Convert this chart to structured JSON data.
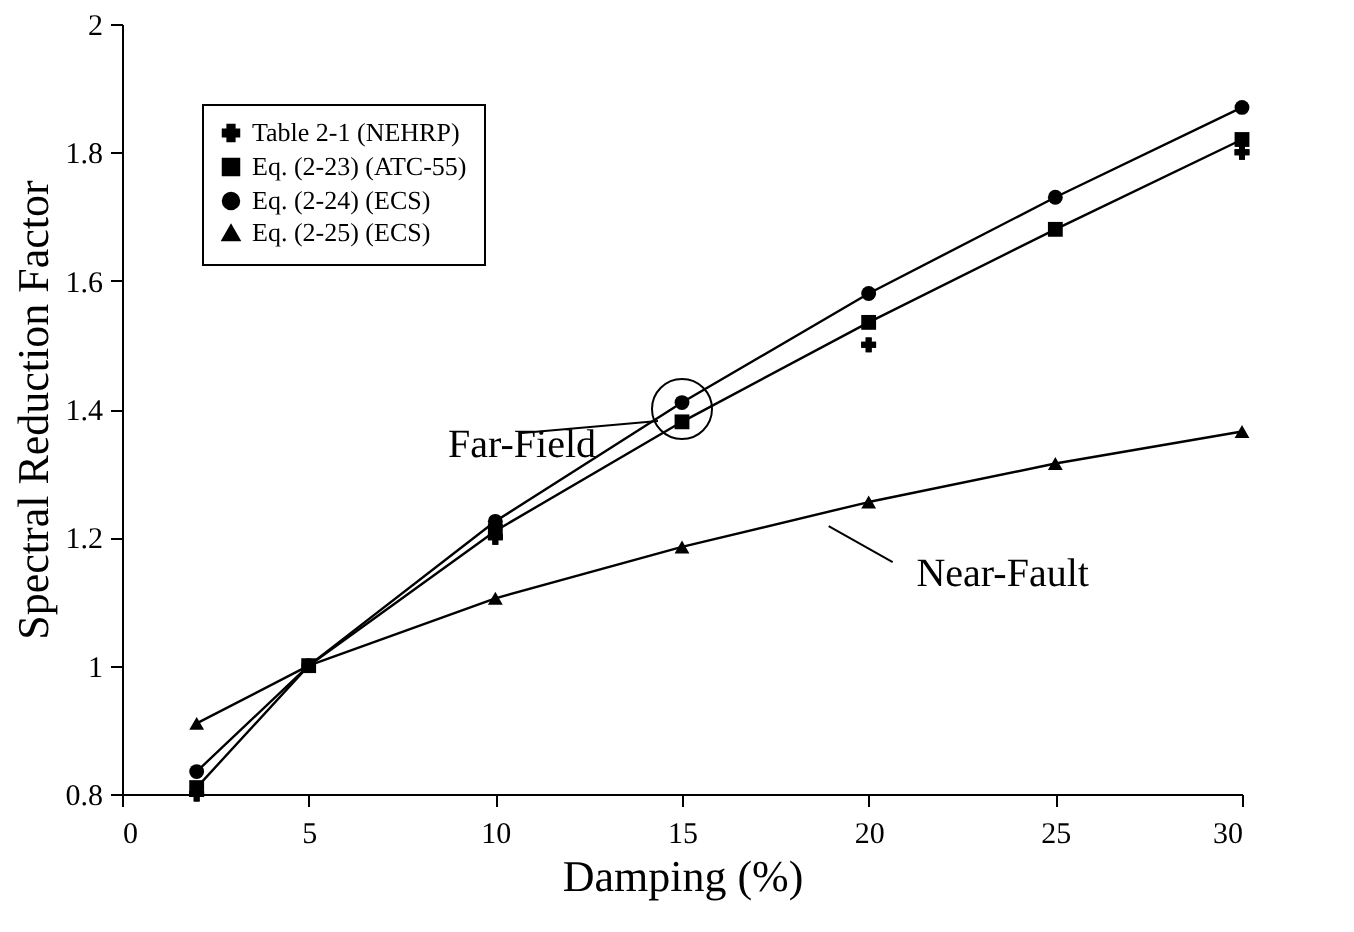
{
  "chart_data": {
    "type": "line",
    "xlabel": "Damping (%)",
    "ylabel": "Spectral Reduction Factor",
    "x": [
      2,
      5,
      10,
      15,
      20,
      25,
      30
    ],
    "xlim": [
      0,
      30
    ],
    "xticks": [
      0,
      5,
      10,
      15,
      20,
      25,
      30
    ],
    "ylim": [
      0.8,
      2
    ],
    "yticks": [
      0.8,
      1,
      1.2,
      1.4,
      1.6,
      1.8,
      2
    ],
    "grid": false,
    "legend": "top left",
    "series": [
      {
        "name": "Table 2-1 (NEHRP)",
        "type": "scatter",
        "marker": "cross",
        "color": "#000000",
        "x": [
          2,
          10,
          20,
          30
        ],
        "values": [
          0.8,
          1.2,
          1.5,
          1.8
        ]
      },
      {
        "name": "Eq. (2-23) (ATC-55)",
        "marker": "square",
        "color": "#000000",
        "values": [
          0.81,
          1.0,
          1.21,
          1.38,
          1.535,
          1.68,
          1.82
        ]
      },
      {
        "name": "Eq. (2-24) (ECS)",
        "marker": "circle",
        "color": "#000000",
        "values": [
          0.835,
          1.0,
          1.225,
          1.41,
          1.58,
          1.73,
          1.87
        ]
      },
      {
        "name": "Eq. (2-25) (ECS)",
        "marker": "triangle",
        "color": "#000000",
        "values": [
          0.91,
          1.0,
          1.105,
          1.185,
          1.255,
          1.315,
          1.365
        ]
      }
    ],
    "annotations": [
      {
        "text": "Far-Field",
        "x": 15,
        "y": 1.4
      },
      {
        "text": "Near-Fault",
        "x": 18.5,
        "y": 1.23
      }
    ]
  }
}
